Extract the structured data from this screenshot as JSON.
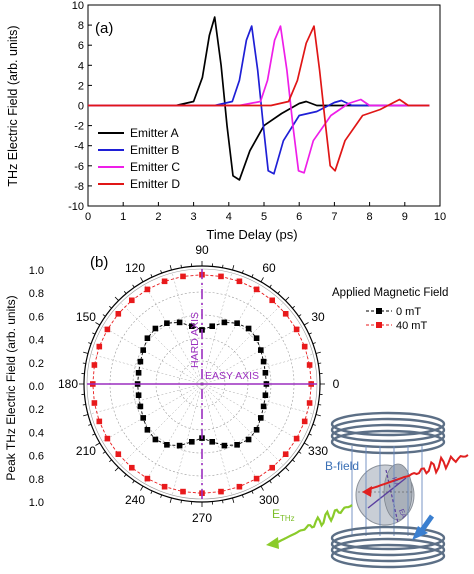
{
  "chart_data": [
    {
      "panel": "(a)",
      "type": "line",
      "xlabel": "Time Delay (ps)",
      "ylabel": "THz Electric Field (arb. units)",
      "xlim": [
        0,
        10
      ],
      "ylim": [
        -10,
        10
      ],
      "x_ticks": [
        0,
        1,
        2,
        3,
        4,
        5,
        6,
        7,
        8,
        9,
        10
      ],
      "y_ticks": [
        -10,
        -8,
        -6,
        -4,
        -2,
        0,
        2,
        4,
        6,
        8,
        10
      ],
      "legend_position": "bottom-left",
      "series": [
        {
          "name": "Emitter A",
          "color": "#000000",
          "x": [
            0,
            2.5,
            3.0,
            3.25,
            3.45,
            3.6,
            3.78,
            3.95,
            4.12,
            4.3,
            4.6,
            5.0,
            5.5,
            6.0,
            6.2,
            6.5,
            7.5,
            9.7
          ],
          "y": [
            0,
            0,
            0.4,
            2.8,
            7.0,
            8.8,
            4.0,
            -2.0,
            -7.0,
            -7.4,
            -4.5,
            -2.0,
            -0.8,
            0.2,
            0.4,
            0,
            0,
            0
          ]
        },
        {
          "name": "Emitter B",
          "color": "#1f1fd6",
          "x": [
            0,
            3.6,
            4.1,
            4.3,
            4.5,
            4.65,
            4.82,
            4.98,
            5.12,
            5.28,
            5.55,
            6.0,
            6.5,
            7.0,
            7.2,
            7.5,
            9.7
          ],
          "y": [
            0,
            0,
            0.4,
            2.5,
            6.5,
            7.9,
            3.5,
            -2.0,
            -6.5,
            -6.8,
            -3.5,
            -1.0,
            -0.6,
            0.3,
            0.5,
            0,
            0
          ]
        },
        {
          "name": "Emitter C",
          "color": "#ee1ee8",
          "x": [
            0,
            4.3,
            4.9,
            5.1,
            5.3,
            5.47,
            5.65,
            5.82,
            5.98,
            6.14,
            6.4,
            6.9,
            7.4,
            7.75,
            8.0,
            9.7
          ],
          "y": [
            0,
            0,
            0.4,
            2.5,
            6.5,
            7.9,
            3.5,
            -2.0,
            -6.5,
            -6.7,
            -3.5,
            -1.0,
            0.2,
            0.6,
            0,
            0
          ]
        },
        {
          "name": "Emitter D",
          "color": "#e01616",
          "x": [
            0,
            5.2,
            5.7,
            5.95,
            6.2,
            6.42,
            6.58,
            6.75,
            6.88,
            7.02,
            7.3,
            7.8,
            8.3,
            8.85,
            9.1,
            9.7
          ],
          "y": [
            0,
            0,
            0.4,
            2.5,
            6.2,
            7.9,
            3.5,
            -2.0,
            -6.0,
            -6.5,
            -3.5,
            -1.0,
            -0.4,
            0.6,
            0,
            0
          ]
        }
      ]
    },
    {
      "panel": "(b)",
      "type": "scatter",
      "subtype": "polar",
      "ylabel": "Peak THz Electric Field (arb. units)",
      "r_lim": [
        0,
        1.0
      ],
      "r_ticks_left": [
        "1.0",
        "0.8",
        "0.6",
        "0.4",
        "0.2",
        "0.0",
        "0.2",
        "0.4",
        "0.6",
        "0.8",
        "1.0"
      ],
      "angle_ticks": [
        "0",
        "30",
        "60",
        "90",
        "120",
        "150",
        "180",
        "210",
        "240",
        "270",
        "300",
        "330"
      ],
      "legend_title": "Applied Magnetic Field",
      "legend_position": "right",
      "annotations": [
        "HARD AXIS",
        "EASY AXIS"
      ],
      "series": [
        {
          "name": "0 mT",
          "color": "#000000",
          "marker": "square",
          "theta_deg": [
            0,
            10,
            20,
            30,
            40,
            50,
            60,
            70,
            80,
            90,
            100,
            110,
            120,
            130,
            140,
            150,
            160,
            170,
            180,
            190,
            200,
            210,
            220,
            230,
            240,
            250,
            260,
            270,
            280,
            290,
            300,
            310,
            320,
            330,
            340,
            350
          ],
          "r": [
            0.56,
            0.56,
            0.57,
            0.59,
            0.62,
            0.63,
            0.61,
            0.57,
            0.51,
            0.47,
            0.51,
            0.57,
            0.61,
            0.63,
            0.62,
            0.59,
            0.57,
            0.56,
            0.56,
            0.56,
            0.57,
            0.59,
            0.62,
            0.63,
            0.61,
            0.57,
            0.51,
            0.47,
            0.51,
            0.57,
            0.61,
            0.63,
            0.62,
            0.59,
            0.57,
            0.56
          ]
        },
        {
          "name": "40 mT",
          "color": "#e8191b",
          "marker": "square",
          "theta_deg": [
            0,
            10,
            20,
            30,
            40,
            50,
            60,
            70,
            80,
            90,
            100,
            110,
            120,
            130,
            140,
            150,
            160,
            170,
            180,
            190,
            200,
            210,
            220,
            230,
            240,
            250,
            260,
            270,
            280,
            290,
            300,
            310,
            320,
            330,
            340,
            350
          ],
          "r": [
            0.95,
            0.95,
            0.95,
            0.95,
            0.95,
            0.95,
            0.95,
            0.95,
            0.95,
            0.95,
            0.95,
            0.95,
            0.95,
            0.95,
            0.95,
            0.95,
            0.95,
            0.95,
            0.95,
            0.95,
            0.95,
            0.95,
            0.95,
            0.95,
            0.95,
            0.95,
            0.95,
            0.95,
            0.95,
            0.95,
            0.95,
            0.95,
            0.95,
            0.95,
            0.95,
            0.95
          ]
        }
      ]
    }
  ],
  "inset": {
    "b_field_label": "B-field",
    "e_thz_label": "E",
    "e_thz_subscript": "THz",
    "ha_label": "HA",
    "ea_label": "EA",
    "colors": {
      "coil": "#5c6f86",
      "beam_in": "#e02020",
      "beam_out": "#8acb2a",
      "arrow": "#3a7fd0"
    }
  }
}
